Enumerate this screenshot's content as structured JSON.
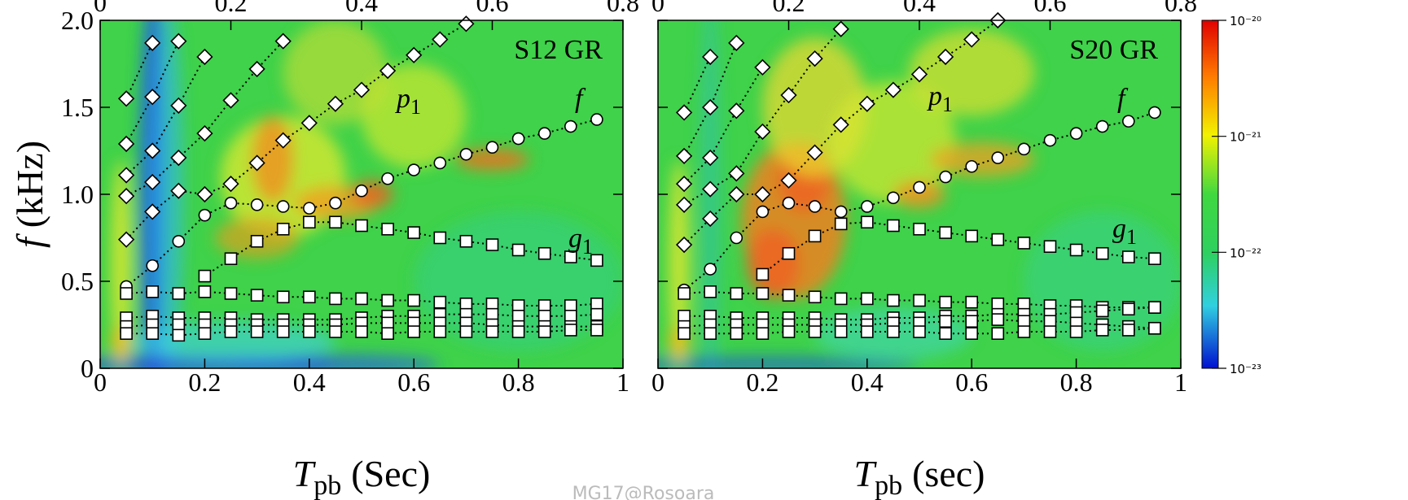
{
  "chart_data": [
    {
      "type": "scatter",
      "annotations": [
        {
          "text": "S12 GR"
        },
        {
          "text": "p",
          "sub": "1"
        },
        {
          "text": "f"
        },
        {
          "text": "g",
          "sub": "1"
        }
      ],
      "xlabel": {
        "symbol": "T",
        "sub": "pb",
        "unit": "(Sec)"
      },
      "ylabel": {
        "symbol": "f",
        "unit": "(kHz)"
      },
      "xlim": [
        0,
        1
      ],
      "xticks": [
        0,
        0.2,
        0.4,
        0.6,
        0.8,
        1
      ],
      "ylim": [
        0,
        2
      ],
      "yticks": [
        0,
        0.5,
        {
          "value": 1,
          "label": "1.0"
        },
        1.5,
        {
          "value": 2,
          "label": "2.0"
        }
      ],
      "x2lim": [
        0,
        0.8
      ],
      "x2ticks": [
        0,
        0.2,
        0.4,
        0.6,
        0.8
      ],
      "series": [
        {
          "marker": "circle",
          "x": [
            0.05,
            0.1,
            0.15,
            0.2,
            0.25,
            0.3,
            0.35,
            0.4,
            0.45,
            0.5,
            0.55,
            0.6,
            0.65,
            0.7,
            0.75,
            0.8,
            0.85,
            0.9,
            0.95
          ],
          "values": [
            0.47,
            0.59,
            0.73,
            0.88,
            0.95,
            0.94,
            0.93,
            0.92,
            0.95,
            1.02,
            1.09,
            1.14,
            1.18,
            1.23,
            1.27,
            1.32,
            1.35,
            1.39,
            1.43
          ]
        },
        {
          "marker": "square",
          "x": [
            0.2,
            0.25,
            0.3,
            0.35,
            0.4,
            0.45,
            0.5,
            0.55,
            0.6,
            0.65,
            0.7,
            0.75,
            0.8,
            0.85,
            0.9,
            0.95
          ],
          "values": [
            0.53,
            0.63,
            0.73,
            0.8,
            0.84,
            0.84,
            0.82,
            0.8,
            0.78,
            0.75,
            0.73,
            0.71,
            0.68,
            0.66,
            0.64,
            0.62
          ]
        },
        {
          "marker": "square",
          "x": [
            0.05,
            0.1,
            0.15,
            0.2,
            0.25,
            0.3,
            0.35,
            0.4,
            0.45,
            0.5,
            0.55,
            0.6,
            0.65,
            0.7,
            0.75,
            0.8,
            0.85,
            0.9,
            0.95
          ],
          "values": [
            0.43,
            0.44,
            0.43,
            0.44,
            0.43,
            0.42,
            0.41,
            0.41,
            0.4,
            0.4,
            0.39,
            0.39,
            0.38,
            0.37,
            0.37,
            0.36,
            0.36,
            0.36,
            0.37
          ]
        },
        {
          "marker": "square",
          "x": [
            0.05,
            0.1,
            0.15,
            0.2,
            0.25,
            0.3,
            0.35,
            0.4,
            0.45,
            0.5,
            0.55,
            0.6,
            0.65,
            0.7,
            0.75,
            0.8,
            0.85,
            0.9,
            0.95
          ],
          "values": [
            0.29,
            0.3,
            0.29,
            0.29,
            0.29,
            0.28,
            0.28,
            0.28,
            0.28,
            0.29,
            0.3,
            0.3,
            0.31,
            0.31,
            0.31,
            0.3,
            0.3,
            0.3,
            0.31
          ]
        },
        {
          "marker": "square",
          "x": [
            0.05,
            0.1,
            0.15,
            0.2,
            0.25,
            0.3,
            0.35,
            0.4,
            0.45,
            0.5,
            0.55,
            0.6,
            0.65,
            0.7,
            0.75,
            0.8,
            0.85,
            0.9,
            0.95
          ],
          "values": [
            0.24,
            0.25,
            0.25,
            0.25,
            0.25,
            0.25,
            0.25,
            0.25,
            0.25,
            0.26,
            0.26,
            0.26,
            0.26,
            0.26,
            0.25,
            0.24,
            0.24,
            0.24,
            0.24
          ]
        },
        {
          "marker": "square",
          "x": [
            0.05,
            0.1,
            0.15,
            0.2,
            0.25,
            0.3,
            0.35,
            0.4,
            0.45,
            0.5,
            0.55,
            0.6,
            0.65,
            0.7,
            0.75,
            0.8,
            0.85,
            0.9,
            0.95
          ],
          "values": [
            0.2,
            0.2,
            0.19,
            0.2,
            0.21,
            0.21,
            0.21,
            0.21,
            0.21,
            0.21,
            0.2,
            0.21,
            0.21,
            0.21,
            0.21,
            0.21,
            0.21,
            0.22,
            0.22
          ]
        },
        {
          "marker": "diamond",
          "x": [
            0.05,
            0.1,
            0.15,
            0.2,
            0.25,
            0.3,
            0.35,
            0.4,
            0.45,
            0.5,
            0.55,
            0.6,
            0.65,
            0.7
          ],
          "values": [
            0.74,
            0.9,
            1.02,
            1.0,
            1.06,
            1.18,
            1.31,
            1.41,
            1.52,
            1.6,
            1.71,
            1.8,
            1.89,
            1.98
          ]
        },
        {
          "marker": "diamond",
          "x": [
            0.05,
            0.1,
            0.15,
            0.2,
            0.25,
            0.3,
            0.35
          ],
          "values": [
            0.99,
            1.07,
            1.21,
            1.35,
            1.54,
            1.72,
            1.88
          ]
        },
        {
          "marker": "diamond",
          "x": [
            0.05,
            0.1,
            0.15,
            0.2
          ],
          "values": [
            1.11,
            1.25,
            1.51,
            1.79
          ]
        },
        {
          "marker": "diamond",
          "x": [
            0.05,
            0.1,
            0.15
          ],
          "values": [
            1.29,
            1.56,
            1.88
          ]
        },
        {
          "marker": "diamond",
          "x": [
            0.05,
            0.1
          ],
          "values": [
            1.55,
            1.87
          ]
        }
      ]
    },
    {
      "type": "scatter",
      "annotations": [
        {
          "text": "S20 GR"
        },
        {
          "text": "p",
          "sub": "1"
        },
        {
          "text": "f"
        },
        {
          "text": "g",
          "sub": "1"
        }
      ],
      "xlabel": {
        "symbol": "T",
        "sub": "pb",
        "unit": "(sec)"
      },
      "xlim": [
        0,
        1
      ],
      "xticks": [
        0,
        0.2,
        0.4,
        0.6,
        0.8,
        1
      ],
      "ylim": [
        0,
        2
      ],
      "yticks": [
        0,
        0.5,
        1,
        1.5,
        2
      ],
      "ytick_labels": false,
      "x2lim": [
        0,
        0.8
      ],
      "x2ticks": [
        0,
        0.2,
        0.4,
        0.6,
        0.8
      ],
      "series": [
        {
          "marker": "circle",
          "x": [
            0.05,
            0.1,
            0.15,
            0.2,
            0.25,
            0.3,
            0.35,
            0.4,
            0.45,
            0.5,
            0.55,
            0.6,
            0.65,
            0.7,
            0.75,
            0.8,
            0.85,
            0.9,
            0.95
          ],
          "values": [
            0.45,
            0.57,
            0.75,
            0.9,
            0.95,
            0.93,
            0.9,
            0.93,
            0.98,
            1.04,
            1.1,
            1.16,
            1.21,
            1.26,
            1.31,
            1.35,
            1.39,
            1.42,
            1.47
          ]
        },
        {
          "marker": "square",
          "x": [
            0.2,
            0.25,
            0.3,
            0.35,
            0.4,
            0.45,
            0.5,
            0.55,
            0.6,
            0.65,
            0.7,
            0.75,
            0.8,
            0.85,
            0.9,
            0.95
          ],
          "values": [
            0.54,
            0.66,
            0.76,
            0.83,
            0.84,
            0.82,
            0.8,
            0.78,
            0.76,
            0.74,
            0.72,
            0.7,
            0.68,
            0.66,
            0.64,
            0.63
          ]
        },
        {
          "marker": "square",
          "x": [
            0.05,
            0.1,
            0.15,
            0.2,
            0.25,
            0.3,
            0.35,
            0.4,
            0.45,
            0.5,
            0.55,
            0.6,
            0.65,
            0.7,
            0.75,
            0.8,
            0.85,
            0.9,
            0.95
          ],
          "values": [
            0.43,
            0.44,
            0.43,
            0.43,
            0.42,
            0.41,
            0.4,
            0.4,
            0.39,
            0.39,
            0.38,
            0.38,
            0.37,
            0.37,
            0.36,
            0.36,
            0.35,
            0.35,
            0.35
          ]
        },
        {
          "marker": "square",
          "x": [
            0.05,
            0.1,
            0.15,
            0.2,
            0.25,
            0.3,
            0.35,
            0.4,
            0.45,
            0.5,
            0.55,
            0.6,
            0.65,
            0.7,
            0.75,
            0.8,
            0.85,
            0.9,
            0.95
          ],
          "values": [
            0.3,
            0.3,
            0.29,
            0.29,
            0.29,
            0.29,
            0.28,
            0.28,
            0.29,
            0.29,
            0.3,
            0.3,
            0.31,
            0.31,
            0.31,
            0.32,
            0.33,
            0.34,
            0.35
          ]
        },
        {
          "marker": "square",
          "x": [
            0.05,
            0.1,
            0.15,
            0.2,
            0.25,
            0.3,
            0.35,
            0.4,
            0.45,
            0.5,
            0.55,
            0.6,
            0.65,
            0.7,
            0.75,
            0.8,
            0.85,
            0.9,
            0.95
          ],
          "values": [
            0.24,
            0.25,
            0.25,
            0.25,
            0.25,
            0.25,
            0.25,
            0.25,
            0.26,
            0.26,
            0.27,
            0.27,
            0.28,
            0.27,
            0.27,
            0.26,
            0.25,
            0.24,
            0.23
          ]
        },
        {
          "marker": "square",
          "x": [
            0.05,
            0.1,
            0.15,
            0.2,
            0.25,
            0.3,
            0.35,
            0.4,
            0.45,
            0.5,
            0.55,
            0.6,
            0.65,
            0.7,
            0.75,
            0.8,
            0.85,
            0.9,
            0.95
          ],
          "values": [
            0.2,
            0.2,
            0.2,
            0.2,
            0.21,
            0.21,
            0.21,
            0.21,
            0.21,
            0.21,
            0.2,
            0.2,
            0.2,
            0.21,
            0.21,
            0.21,
            0.22,
            0.22,
            0.23
          ]
        },
        {
          "marker": "diamond",
          "x": [
            0.05,
            0.1,
            0.15,
            0.2,
            0.25,
            0.3,
            0.35,
            0.4,
            0.45,
            0.5,
            0.55,
            0.6,
            0.65
          ],
          "values": [
            0.71,
            0.86,
            1.0,
            1.0,
            1.08,
            1.24,
            1.4,
            1.52,
            1.6,
            1.69,
            1.79,
            1.89,
            2.0
          ]
        },
        {
          "marker": "diamond",
          "x": [
            0.05,
            0.1,
            0.15,
            0.2,
            0.25,
            0.3,
            0.35
          ],
          "values": [
            0.94,
            1.03,
            1.12,
            1.36,
            1.57,
            1.78,
            1.95
          ]
        },
        {
          "marker": "diamond",
          "x": [
            0.05,
            0.1,
            0.15,
            0.2
          ],
          "values": [
            1.06,
            1.21,
            1.48,
            1.73
          ]
        },
        {
          "marker": "diamond",
          "x": [
            0.05,
            0.1,
            0.15
          ],
          "values": [
            1.22,
            1.5,
            1.87
          ]
        },
        {
          "marker": "diamond",
          "x": [
            0.05,
            0.1
          ],
          "values": [
            1.47,
            1.79
          ]
        }
      ],
      "colorbar": {
        "log": true,
        "zlim": [
          1e-23,
          1e-20
        ],
        "ticks": [
          {
            "value": 1e-20,
            "label": "10⁻²⁰"
          },
          {
            "value": 1e-21,
            "label": "10⁻²¹"
          },
          {
            "value": 1e-22,
            "label": "10⁻²²"
          },
          {
            "value": 1e-23,
            "label": "10⁻²³"
          }
        ]
      }
    }
  ],
  "watermark": "MG17@Rosoara"
}
